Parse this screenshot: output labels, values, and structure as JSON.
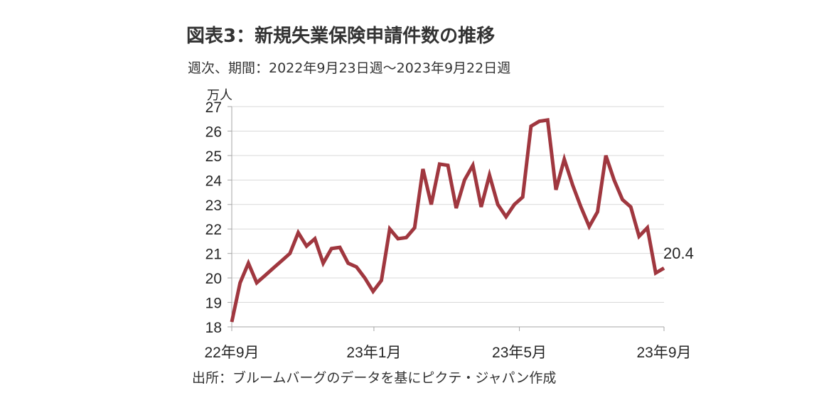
{
  "header": {
    "title": "図表3：新規失業保険申請件数の推移",
    "subtitle": "週次、期間：2022年9月23日週～2023年9月22日週"
  },
  "footer": {
    "source": "出所：ブルームバーグのデータを基にピクテ・ジャパン作成"
  },
  "chart_data": {
    "type": "line",
    "title": "図表3：新規失業保険申請件数の推移",
    "subtitle": "週次、期間：2022年9月23日週～2023年9月22日週",
    "ylabel": "万人",
    "ylim": [
      18,
      27
    ],
    "yticks": [
      18,
      19,
      20,
      21,
      22,
      23,
      24,
      25,
      26,
      27
    ],
    "xtick_labels": [
      "22年9月",
      "23年1月",
      "23年5月",
      "23年9月"
    ],
    "xtick_index": [
      0,
      17.1,
      34.6,
      52
    ],
    "grid": true,
    "line_color": "#A0373F",
    "last_value_label": "20.4",
    "series": [
      {
        "values": [
          18.2,
          19.8,
          20.6,
          19.8,
          20.1,
          20.4,
          20.7,
          21.0,
          21.85,
          21.3,
          21.6,
          20.6,
          21.2,
          21.25,
          20.6,
          20.45,
          20.0,
          19.45,
          19.9,
          22.0,
          21.6,
          21.65,
          22.05,
          24.45,
          23.0,
          24.65,
          24.6,
          22.85,
          24.0,
          24.6,
          22.9,
          24.2,
          23.0,
          22.5,
          23.0,
          23.3,
          26.2,
          26.4,
          26.45,
          23.6,
          24.85,
          23.8,
          22.9,
          22.1,
          22.7,
          25.0,
          24.0,
          23.2,
          22.9,
          21.7,
          22.05,
          20.2,
          20.4
        ]
      }
    ]
  }
}
